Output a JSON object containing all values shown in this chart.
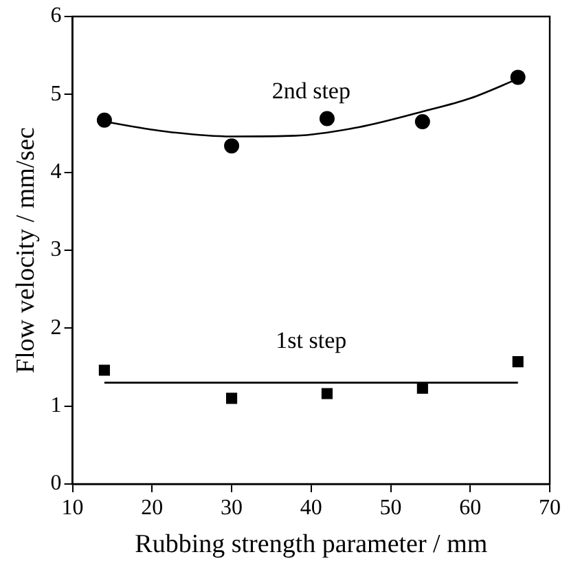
{
  "chart_data": {
    "type": "scatter",
    "xlabel": "Rubbing strength parameter / mm",
    "ylabel": "Flow velocity / mm/sec",
    "xlim": [
      10,
      70
    ],
    "xticks": [
      10,
      20,
      30,
      40,
      50,
      60,
      70
    ],
    "ylim": [
      0,
      6
    ],
    "yticks": [
      0,
      1,
      2,
      3,
      4,
      5,
      6
    ],
    "grid": false,
    "legend": false,
    "series": [
      {
        "type": "scatter",
        "marker": "circle",
        "color": "#000000",
        "x": [
          14,
          30,
          42,
          54,
          66
        ],
        "values": [
          4.67,
          4.34,
          4.69,
          4.65,
          5.22
        ]
      },
      {
        "type": "line",
        "name": "2nd step",
        "marker": "none",
        "color": "#000000",
        "x": [
          14,
          22,
          30,
          38,
          46,
          54,
          60,
          66
        ],
        "values": [
          4.65,
          4.52,
          4.46,
          4.47,
          4.58,
          4.78,
          4.95,
          5.2
        ]
      },
      {
        "type": "scatter",
        "marker": "square",
        "color": "#000000",
        "x": [
          14,
          30,
          42,
          54,
          66
        ],
        "values": [
          1.46,
          1.1,
          1.16,
          1.23,
          1.57
        ]
      },
      {
        "type": "line",
        "name": "1st step",
        "marker": "none",
        "color": "#000000",
        "x": [
          14,
          66
        ],
        "values": [
          1.3,
          1.3
        ]
      }
    ]
  }
}
